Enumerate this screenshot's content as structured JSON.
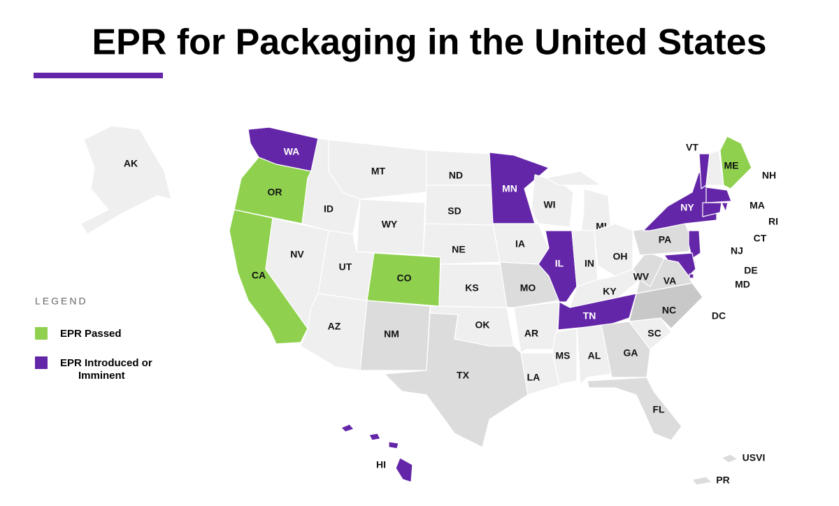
{
  "title": "EPR for Packaging in the United States",
  "legend": {
    "title": "LEGEND",
    "items": [
      {
        "label": "EPR Passed",
        "color": "#8fd14f"
      },
      {
        "label": "EPR Introduced or Imminent",
        "color": "#6426a8"
      }
    ]
  },
  "states": [
    {
      "label": "AK",
      "color": "#efefef"
    },
    {
      "label": "WA",
      "color": "#6426a8"
    },
    {
      "label": "OR",
      "color": "#8fd14f"
    },
    {
      "label": "CA",
      "color": "#8fd14f"
    },
    {
      "label": "NV",
      "color": "#efefef"
    },
    {
      "label": "ID",
      "color": "#efefef"
    },
    {
      "label": "MT",
      "color": "#efefef"
    },
    {
      "label": "WY",
      "color": "#efefef"
    },
    {
      "label": "UT",
      "color": "#efefef"
    },
    {
      "label": "CO",
      "color": "#8fd14f"
    },
    {
      "label": "AZ",
      "color": "#efefef"
    },
    {
      "label": "NM",
      "color": "#dcdcdc"
    },
    {
      "label": "ND",
      "color": "#efefef"
    },
    {
      "label": "SD",
      "color": "#efefef"
    },
    {
      "label": "NE",
      "color": "#efefef"
    },
    {
      "label": "KS",
      "color": "#efefef"
    },
    {
      "label": "OK",
      "color": "#efefef"
    },
    {
      "label": "TX",
      "color": "#dcdcdc"
    },
    {
      "label": "MN",
      "color": "#6426a8"
    },
    {
      "label": "IA",
      "color": "#efefef"
    },
    {
      "label": "MO",
      "color": "#dcdcdc"
    },
    {
      "label": "AR",
      "color": "#efefef"
    },
    {
      "label": "LA",
      "color": "#efefef"
    },
    {
      "label": "WI",
      "color": "#efefef"
    },
    {
      "label": "IL",
      "color": "#6426a8"
    },
    {
      "label": "MI",
      "color": "#efefef"
    },
    {
      "label": "IN",
      "color": "#efefef"
    },
    {
      "label": "OH",
      "color": "#efefef"
    },
    {
      "label": "KY",
      "color": "#efefef"
    },
    {
      "label": "TN",
      "color": "#6426a8"
    },
    {
      "label": "MS",
      "color": "#efefef"
    },
    {
      "label": "AL",
      "color": "#efefef"
    },
    {
      "label": "GA",
      "color": "#dcdcdc"
    },
    {
      "label": "FL",
      "color": "#dcdcdc"
    },
    {
      "label": "SC",
      "color": "#efefef"
    },
    {
      "label": "NC",
      "color": "#c8c8c8"
    },
    {
      "label": "VA",
      "color": "#dcdcdc"
    },
    {
      "label": "WV",
      "color": "#dcdcdc"
    },
    {
      "label": "PA",
      "color": "#dcdcdc"
    },
    {
      "label": "NY",
      "color": "#6426a8"
    },
    {
      "label": "NJ",
      "color": "#6426a8"
    },
    {
      "label": "DE",
      "color": "#efefef"
    },
    {
      "label": "MD",
      "color": "#6426a8"
    },
    {
      "label": "DC",
      "color": "#6426a8"
    },
    {
      "label": "VT",
      "color": "#6426a8"
    },
    {
      "label": "NH",
      "color": "#efefef"
    },
    {
      "label": "ME",
      "color": "#8fd14f"
    },
    {
      "label": "MA",
      "color": "#6426a8"
    },
    {
      "label": "RI",
      "color": "#6426a8"
    },
    {
      "label": "CT",
      "color": "#6426a8"
    },
    {
      "label": "HI",
      "color": "#6426a8"
    },
    {
      "label": "USVI",
      "color": "#dcdcdc"
    },
    {
      "label": "PR",
      "color": "#dcdcdc"
    }
  ]
}
